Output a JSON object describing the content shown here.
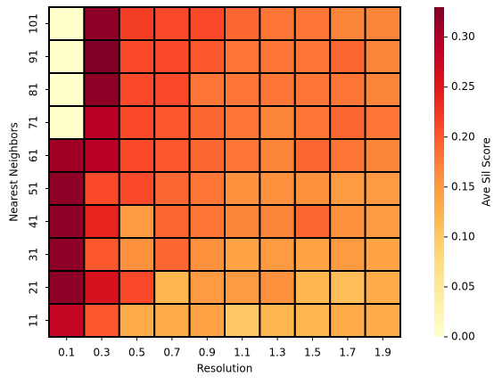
{
  "chart_data": {
    "type": "heatmap",
    "x_label": "Resolution",
    "y_label": "Nearest Neighbors",
    "colorbar_label": "Ave Sil Score",
    "x_categories": [
      "0.1",
      "0.3",
      "0.5",
      "0.7",
      "0.9",
      "1.1",
      "1.3",
      "1.5",
      "1.7",
      "1.9"
    ],
    "y_categories": [
      "101",
      "91",
      "81",
      "71",
      "61",
      "51",
      "41",
      "31",
      "21",
      "11"
    ],
    "values": [
      [
        0.0,
        0.32,
        0.22,
        0.21,
        0.21,
        0.19,
        0.18,
        0.18,
        0.17,
        0.17
      ],
      [
        0.0,
        0.33,
        0.21,
        0.21,
        0.2,
        0.18,
        0.18,
        0.18,
        0.19,
        0.17
      ],
      [
        0.0,
        0.32,
        0.21,
        0.21,
        0.18,
        0.18,
        0.18,
        0.18,
        0.18,
        0.17
      ],
      [
        0.0,
        0.29,
        0.21,
        0.2,
        0.19,
        0.18,
        0.17,
        0.18,
        0.19,
        0.18
      ],
      [
        0.31,
        0.29,
        0.21,
        0.2,
        0.19,
        0.18,
        0.17,
        0.19,
        0.18,
        0.17
      ],
      [
        0.32,
        0.21,
        0.21,
        0.19,
        0.18,
        0.16,
        0.16,
        0.16,
        0.15,
        0.15
      ],
      [
        0.32,
        0.24,
        0.15,
        0.19,
        0.18,
        0.17,
        0.17,
        0.19,
        0.16,
        0.15
      ],
      [
        0.32,
        0.2,
        0.16,
        0.19,
        0.16,
        0.14,
        0.15,
        0.14,
        0.15,
        0.14
      ],
      [
        0.32,
        0.26,
        0.21,
        0.12,
        0.15,
        0.15,
        0.16,
        0.12,
        0.11,
        0.13
      ],
      [
        0.28,
        0.2,
        0.13,
        0.13,
        0.14,
        0.1,
        0.12,
        0.12,
        0.13,
        0.13
      ]
    ],
    "colorscale": [
      "#ffffcc",
      "#ffeda0",
      "#fed976",
      "#feb24c",
      "#fd8d3c",
      "#fc4e2a",
      "#e31a1c",
      "#bd0026",
      "#800026"
    ],
    "cell_border_color": "#000000",
    "clim": [
      0,
      0.33
    ],
    "cticks": [
      {
        "value": 0,
        "label": "0.00"
      },
      0.05,
      {
        "value": 0.1,
        "label": "0.10"
      },
      0.15,
      {
        "value": 0.2,
        "label": "0.20"
      },
      0.25,
      {
        "value": 0.3,
        "label": "0.30"
      }
    ]
  }
}
